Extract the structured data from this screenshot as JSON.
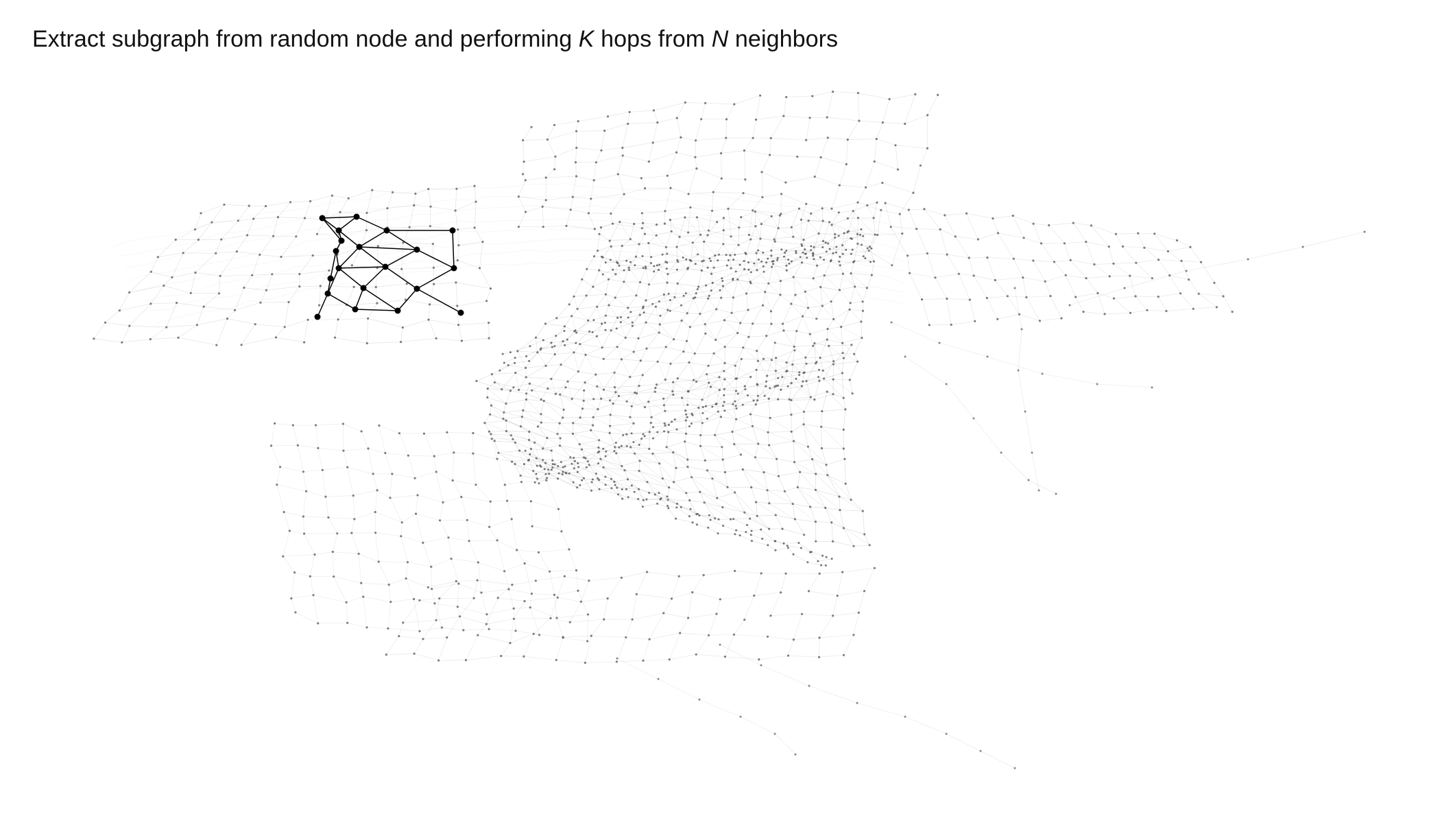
{
  "title": {
    "part1": "Extract subgraph from random node and performing ",
    "k": "K",
    "part2": " hops from ",
    "n": "N",
    "part3": " neighbors"
  },
  "colors": {
    "background": "#ffffff",
    "title": "#111111",
    "graph_edge": "#9a9a9a",
    "graph_node": "#555555",
    "subgraph": "#000000"
  }
}
